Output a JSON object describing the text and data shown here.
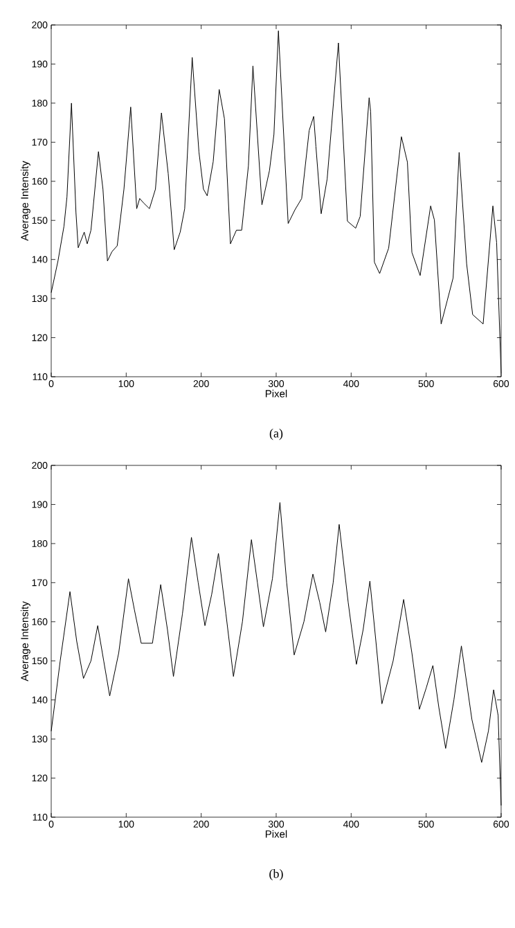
{
  "chart_data": [
    {
      "type": "line",
      "xlabel": "Pixel",
      "ylabel": "Average Intensity",
      "annotations": [
        "(a)"
      ],
      "xlim": [
        0,
        600
      ],
      "ylim": [
        110,
        200
      ],
      "xticks": [
        0,
        100,
        200,
        300,
        400,
        500,
        600
      ],
      "yticks": [
        110,
        120,
        130,
        140,
        150,
        160,
        170,
        180,
        190,
        200
      ],
      "series": [
        {
          "color": "#000000",
          "x": [
            0,
            9,
            17,
            21,
            27,
            33,
            36,
            44,
            48,
            53,
            63,
            69,
            75,
            81,
            88,
            97,
            106,
            114,
            118,
            123,
            131,
            139,
            147,
            156,
            164,
            172,
            178,
            188,
            197,
            203,
            208,
            216,
            224,
            231,
            239,
            247,
            254,
            263,
            269,
            281,
            291,
            297,
            303,
            316,
            325,
            334,
            344,
            350,
            353,
            360,
            368,
            383,
            395,
            406,
            412,
            424,
            426,
            431,
            438,
            450,
            467,
            475,
            481,
            492,
            506,
            511,
            520,
            528,
            536,
            544,
            554,
            562,
            576,
            589,
            594,
            600
          ],
          "values": [
            131.5,
            139.6,
            148.5,
            156,
            180,
            152,
            143,
            147,
            144,
            147.5,
            167.6,
            158,
            139.6,
            142,
            143.5,
            158,
            179,
            153,
            155.6,
            154.5,
            153,
            158,
            177.5,
            162,
            142.5,
            147,
            153,
            191.7,
            167.5,
            158,
            156.3,
            165,
            183.5,
            176,
            144,
            147.5,
            147.5,
            164,
            189.5,
            154,
            162.7,
            172,
            198.5,
            149.2,
            152.7,
            155.6,
            173,
            176.6,
            168.9,
            151.7,
            160.6,
            195.4,
            149.8,
            148,
            151,
            181.4,
            177.8,
            139.3,
            136.4,
            142.9,
            171.4,
            164.9,
            141.8,
            135.9,
            153.7,
            150.1,
            123.5,
            129.4,
            135.3,
            167.4,
            138.9,
            125.9,
            123.5,
            153.7,
            144.3,
            111
          ]
        }
      ]
    },
    {
      "type": "line",
      "xlabel": "Pixel",
      "ylabel": "Average Intensity",
      "annotations": [
        "(b)"
      ],
      "xlim": [
        0,
        600
      ],
      "ylim": [
        110,
        200
      ],
      "xticks": [
        0,
        100,
        200,
        300,
        400,
        500,
        600
      ],
      "yticks": [
        110,
        120,
        130,
        140,
        150,
        160,
        170,
        180,
        190,
        200
      ],
      "series": [
        {
          "color": "#000000",
          "x": [
            0,
            12,
            25,
            34,
            43,
            53,
            62,
            70,
            78,
            90,
            103,
            111,
            120,
            135,
            146,
            155,
            163,
            175,
            187,
            196,
            205,
            214,
            223,
            233,
            243,
            255,
            267,
            275,
            283,
            295,
            305,
            314,
            324,
            337,
            349,
            358,
            366,
            376,
            384,
            396,
            407,
            416,
            425,
            433,
            441,
            456,
            470,
            481,
            491,
            500,
            509,
            517,
            526,
            537,
            547,
            561,
            574,
            583,
            590,
            596,
            600
          ],
          "values": [
            132,
            150,
            167.7,
            155,
            145.5,
            150,
            159,
            150,
            141,
            152,
            171,
            163,
            154.5,
            154.5,
            169.5,
            158,
            146,
            162,
            181.6,
            170,
            159,
            167,
            177.5,
            162,
            146,
            160,
            181,
            170,
            158.7,
            171,
            190.5,
            170,
            151.5,
            160,
            172.2,
            165,
            157.4,
            170,
            184.9,
            165,
            149.1,
            158,
            170.4,
            155,
            139,
            150,
            165.7,
            152,
            137.6,
            143,
            148.8,
            138,
            127.6,
            140,
            153.8,
            135,
            124,
            132,
            142.6,
            136,
            113
          ]
        }
      ]
    }
  ]
}
